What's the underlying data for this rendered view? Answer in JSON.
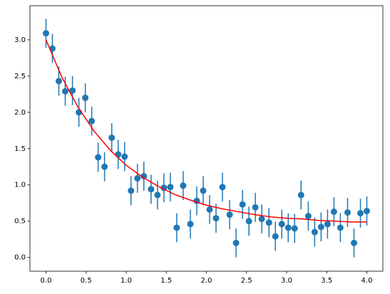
{
  "chart_data": {
    "type": "errorbar",
    "series": [
      {
        "type": "errorbar",
        "color": "#1f77b4",
        "x": [
          0,
          0.08,
          0.16,
          0.24,
          0.33,
          0.41,
          0.49,
          0.57,
          0.65,
          0.73,
          0.82,
          0.9,
          0.98,
          1.06,
          1.14,
          1.22,
          1.31,
          1.39,
          1.47,
          1.55,
          1.63,
          1.71,
          1.8,
          1.88,
          1.96,
          2.04,
          2.12,
          2.2,
          2.29,
          2.37,
          2.45,
          2.53,
          2.61,
          2.69,
          2.78,
          2.86,
          2.94,
          3.02,
          3.1,
          3.18,
          3.27,
          3.35,
          3.43,
          3.51,
          3.59,
          3.67,
          3.76,
          3.84,
          3.92,
          4.0
        ],
        "values": [
          3.09,
          2.88,
          2.43,
          2.29,
          2.3,
          2.0,
          2.2,
          1.88,
          1.38,
          1.25,
          1.65,
          1.42,
          1.39,
          0.92,
          1.09,
          1.12,
          0.94,
          0.86,
          0.96,
          0.97,
          0.41,
          0.99,
          0.46,
          0.78,
          0.92,
          0.66,
          0.54,
          0.97,
          0.59,
          0.2,
          0.73,
          0.5,
          0.69,
          0.53,
          0.48,
          0.29,
          0.46,
          0.41,
          0.4,
          0.86,
          0.57,
          0.35,
          0.42,
          0.46,
          0.63,
          0.41,
          0.62,
          0.2,
          0.61,
          0.64
        ],
        "errors": [
          0.2,
          0.2,
          0.2,
          0.2,
          0.2,
          0.2,
          0.2,
          0.2,
          0.2,
          0.2,
          0.2,
          0.2,
          0.2,
          0.2,
          0.2,
          0.2,
          0.2,
          0.2,
          0.2,
          0.2,
          0.2,
          0.2,
          0.2,
          0.2,
          0.2,
          0.2,
          0.2,
          0.2,
          0.2,
          0.2,
          0.2,
          0.2,
          0.2,
          0.2,
          0.2,
          0.2,
          0.2,
          0.2,
          0.2,
          0.2,
          0.2,
          0.2,
          0.2,
          0.2,
          0.2,
          0.2,
          0.2,
          0.2,
          0.2,
          0.2
        ]
      },
      {
        "type": "line",
        "color": "#ff0000",
        "x": [
          0,
          0.2,
          0.4,
          0.6,
          0.8,
          1.0,
          1.2,
          1.4,
          1.6,
          1.8,
          2.0,
          2.2,
          2.4,
          2.6,
          2.8,
          3.0,
          3.2,
          3.4,
          3.6,
          3.8,
          4.0
        ],
        "values": [
          3.0,
          2.48,
          2.07,
          1.74,
          1.48,
          1.27,
          1.11,
          0.98,
          0.87,
          0.79,
          0.72,
          0.67,
          0.63,
          0.59,
          0.56,
          0.54,
          0.53,
          0.51,
          0.5,
          0.49,
          0.49
        ]
      }
    ],
    "xlim": [
      -0.2,
      4.2
    ],
    "ylim": [
      -0.19,
      3.47
    ],
    "xticks": [
      {
        "value": 0,
        "label": "0.0"
      },
      {
        "value": 0.5,
        "label": "0.5"
      },
      {
        "value": 1,
        "label": "1.0"
      },
      {
        "value": 1.5,
        "label": "1.5"
      },
      {
        "value": 2,
        "label": "2.0"
      },
      {
        "value": 2.5,
        "label": "2.5"
      },
      {
        "value": 3,
        "label": "3.0"
      },
      {
        "value": 3.5,
        "label": "3.5"
      },
      {
        "value": 4,
        "label": "4.0"
      }
    ],
    "yticks": [
      {
        "value": 0,
        "label": "0.0"
      },
      {
        "value": 0.5,
        "label": "0.5"
      },
      {
        "value": 1,
        "label": "1.0"
      },
      {
        "value": 1.5,
        "label": "1.5"
      },
      {
        "value": 2,
        "label": "2.0"
      },
      {
        "value": 2.5,
        "label": "2.5"
      },
      {
        "value": 3,
        "label": "3.0"
      }
    ],
    "grid": false
  }
}
